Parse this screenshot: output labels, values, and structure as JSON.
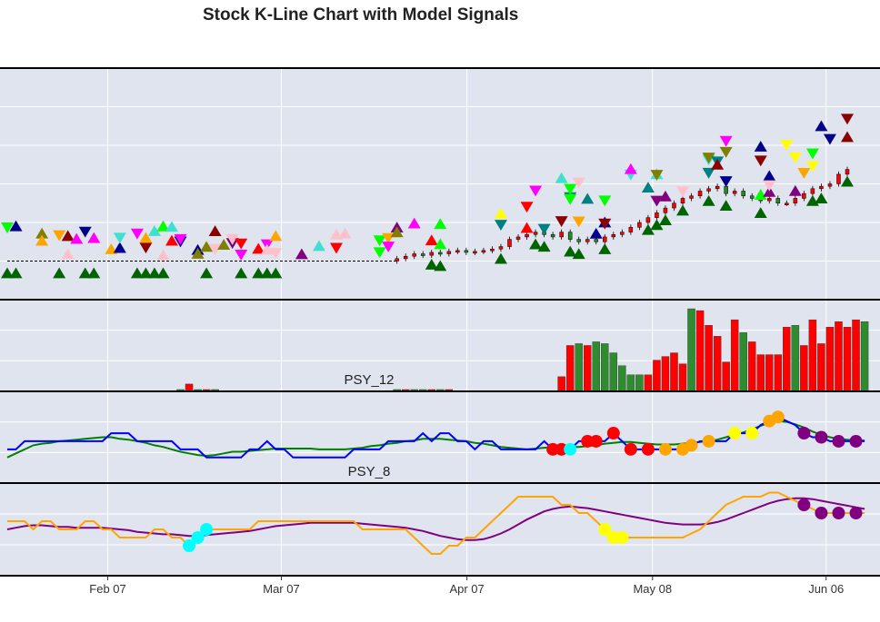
{
  "chart_data": {
    "type": "candlestick-with-indicators",
    "title": "Stock K-Line Chart with Model Signals",
    "x_start": "2024-01-20",
    "x_end": "2024-06-15",
    "xticks": [
      {
        "date": "2024-02-07",
        "label": "Feb 07"
      },
      {
        "date": "2024-03-07",
        "label": "Mar 07"
      },
      {
        "date": "2024-04-07",
        "label": "Apr 07"
      },
      {
        "date": "2024-05-08",
        "label": "May 08"
      },
      {
        "date": "2024-06-06",
        "label": "Jun 06"
      }
    ],
    "price_panel": {
      "close_levels": [
        3.0,
        3.0,
        3.0,
        3.0,
        3.0,
        3.0,
        3.0,
        3.0,
        3.0,
        3.0,
        3.0,
        3.0,
        3.0,
        3.0,
        3.0,
        3.0,
        3.0,
        3.0,
        3.0,
        3.0,
        3.0,
        3.0,
        3.0,
        3.0,
        3.0,
        3.0,
        3.0,
        3.0,
        3.0,
        3.0,
        3.0,
        3.0,
        3.0,
        3.0,
        3.0,
        3.0,
        3.0,
        3.0,
        3.0,
        3.0,
        3.0,
        3.0,
        3.0,
        3.0,
        3.0,
        3.05,
        3.1,
        3.15,
        3.12,
        3.18,
        3.15,
        3.2,
        3.22,
        3.18,
        3.2,
        3.22,
        3.25,
        3.3,
        3.45,
        3.5,
        3.55,
        3.6,
        3.55,
        3.5,
        3.6,
        3.45,
        3.4,
        3.45,
        3.4,
        3.5,
        3.55,
        3.6,
        3.7,
        3.8,
        3.9,
        4.0,
        4.1,
        4.2,
        4.3,
        4.35,
        4.45,
        4.5,
        4.55,
        4.4,
        4.45,
        4.35,
        4.3,
        4.25,
        4.3,
        4.2,
        4.2,
        4.3,
        4.4,
        4.5,
        4.55,
        4.6,
        4.8,
        4.9
      ],
      "ylim": [
        2.2,
        7.0
      ],
      "signal_colors": [
        "#006400",
        "#800080",
        "#ffc0cb",
        "#40e0d0",
        "#8b0000",
        "#00008b",
        "#ff00ff",
        "#00ff00",
        "#808000",
        "#ffff00",
        "#ff0000",
        "#ffa500",
        "#008080"
      ]
    },
    "volume_panel": {
      "values": [
        0.0,
        0.0,
        0.0,
        0.0,
        0.0,
        0.0,
        0.0,
        0.0,
        0.0,
        0.0,
        0.0,
        0.0,
        0.0,
        0.0,
        0.0,
        0.0,
        0.0,
        0.0,
        0.0,
        0.0,
        0.1,
        0.4,
        0.1,
        0.1,
        0.1,
        0.0,
        0.0,
        0.0,
        0.0,
        0.0,
        0.0,
        0.0,
        0.0,
        0.0,
        0.0,
        0.0,
        0.0,
        0.0,
        0.0,
        0.0,
        0.0,
        0.0,
        0.0,
        0.0,
        0.0,
        0.1,
        0.1,
        0.1,
        0.1,
        0.1,
        0.1,
        0.1,
        0.0,
        0.0,
        0.0,
        0.0,
        0.0,
        0.0,
        0.0,
        0.0,
        0.0,
        0.0,
        0.0,
        0.0,
        0.8,
        2.5,
        2.6,
        2.5,
        2.7,
        2.6,
        2.1,
        1.4,
        0.9,
        0.9,
        0.9,
        1.7,
        1.9,
        2.1,
        1.5,
        4.5,
        4.4,
        3.6,
        3.0,
        1.6,
        3.9,
        3.2,
        2.7,
        2.0,
        2.0,
        2.0,
        3.5,
        3.6,
        2.5,
        3.9,
        2.6,
        3.5,
        3.8,
        3.5,
        3.9,
        3.8
      ],
      "volume_up": [
        false,
        false,
        false,
        false,
        false,
        false,
        false,
        false,
        false,
        false,
        false,
        false,
        false,
        false,
        false,
        false,
        false,
        false,
        false,
        false,
        true,
        false,
        true,
        false,
        true,
        false,
        false,
        false,
        false,
        false,
        false,
        false,
        false,
        false,
        false,
        false,
        false,
        false,
        false,
        false,
        false,
        false,
        false,
        false,
        false,
        true,
        false,
        true,
        true,
        false,
        true,
        false,
        false,
        false,
        false,
        false,
        false,
        false,
        false,
        false,
        false,
        false,
        false,
        false,
        false,
        false,
        true,
        false,
        true,
        true,
        true,
        true,
        true,
        true,
        false,
        false,
        false,
        false,
        false,
        true,
        false,
        false,
        false,
        false,
        false,
        true,
        false,
        false,
        false,
        false,
        false,
        true,
        false,
        false,
        false,
        false,
        false,
        false,
        false,
        true
      ]
    },
    "psy12_panel": {
      "label": "PSY_12",
      "psy": [
        35,
        35,
        45,
        45,
        45,
        45,
        45,
        45,
        45,
        45,
        45,
        45,
        55,
        55,
        55,
        45,
        45,
        45,
        45,
        45,
        35,
        35,
        35,
        25,
        25,
        25,
        25,
        25,
        35,
        35,
        45,
        35,
        35,
        25,
        25,
        25,
        25,
        25,
        25,
        25,
        35,
        35,
        35,
        35,
        45,
        45,
        45,
        45,
        55,
        45,
        55,
        55,
        45,
        45,
        35,
        45,
        45,
        35,
        35,
        35,
        35,
        35,
        45,
        35,
        35,
        35,
        45,
        45,
        45,
        45,
        55,
        45,
        35,
        35,
        35,
        35,
        35,
        35,
        35,
        40,
        45,
        45,
        45,
        45,
        55,
        55,
        55,
        65,
        70,
        75,
        70,
        65,
        55,
        50,
        50,
        45,
        45,
        45,
        45,
        45
      ],
      "ma": [
        25,
        30,
        35,
        40,
        42,
        43,
        45,
        46,
        47,
        48,
        49,
        50,
        50,
        48,
        47,
        45,
        43,
        40,
        38,
        35,
        32,
        30,
        28,
        27,
        28,
        30,
        32,
        32,
        33,
        34,
        35,
        36,
        36,
        36,
        36,
        36,
        35,
        35,
        35,
        35,
        36,
        37,
        39,
        40,
        42,
        43,
        45,
        46,
        48,
        48,
        48,
        47,
        46,
        45,
        43,
        42,
        40,
        38,
        37,
        36,
        35,
        36,
        37,
        38,
        38,
        38,
        38,
        39,
        40,
        42,
        43,
        44,
        44,
        43,
        42,
        41,
        41,
        41,
        42,
        43,
        44,
        45,
        47,
        50,
        53,
        56,
        60,
        64,
        68,
        70,
        69,
        66,
        62,
        57,
        53,
        50,
        48,
        47,
        46,
        46
      ],
      "ylim": [
        0,
        100
      ]
    },
    "psy8_panel": {
      "label": "PSY_8",
      "psy": [
        60,
        60,
        60,
        50,
        60,
        60,
        50,
        50,
        50,
        60,
        60,
        50,
        50,
        40,
        40,
        40,
        40,
        50,
        50,
        40,
        40,
        30,
        40,
        50,
        50,
        50,
        50,
        50,
        50,
        60,
        60,
        60,
        60,
        60,
        60,
        60,
        60,
        60,
        60,
        60,
        60,
        50,
        50,
        50,
        50,
        50,
        50,
        40,
        30,
        20,
        20,
        30,
        30,
        40,
        40,
        50,
        60,
        70,
        80,
        90,
        90,
        90,
        90,
        90,
        80,
        80,
        70,
        70,
        60,
        50,
        40,
        40,
        40,
        40,
        40,
        40,
        40,
        40,
        40,
        45,
        50,
        60,
        70,
        80,
        85,
        90,
        90,
        90,
        95,
        95,
        90,
        85,
        80,
        75,
        70,
        70,
        70,
        70,
        70,
        70
      ],
      "ma": [
        50,
        52,
        54,
        55,
        55,
        54,
        53,
        53,
        52,
        52,
        52,
        52,
        51,
        50,
        49,
        47,
        46,
        45,
        44,
        44,
        43,
        42,
        42,
        43,
        44,
        45,
        46,
        47,
        48,
        50,
        52,
        54,
        55,
        56,
        57,
        58,
        58,
        58,
        58,
        58,
        58,
        57,
        56,
        55,
        54,
        53,
        52,
        50,
        48,
        45,
        42,
        40,
        38,
        37,
        37,
        38,
        41,
        45,
        50,
        56,
        62,
        67,
        72,
        75,
        77,
        78,
        77,
        76,
        74,
        72,
        70,
        68,
        66,
        64,
        62,
        60,
        58,
        57,
        56,
        56,
        56,
        57,
        59,
        62,
        66,
        70,
        74,
        78,
        82,
        85,
        87,
        88,
        88,
        87,
        85,
        83,
        81,
        79,
        77,
        75
      ],
      "ylim": [
        0,
        100
      ]
    }
  }
}
